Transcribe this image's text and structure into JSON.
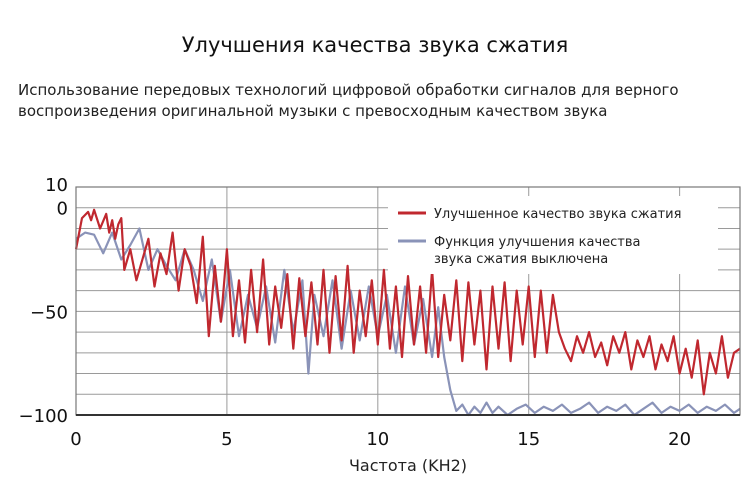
{
  "title": "Улучшения качества звука сжатия",
  "subtitle": "Использование передовых технологий цифровой обработки сигналов для верного воспроизведения оригинальной музыки с превосходным качеством звука",
  "chart_data": {
    "type": "line",
    "xlabel": "Частота (KH2)",
    "ylabel": "",
    "xlim": [
      0,
      22
    ],
    "ylim": [
      -100,
      10
    ],
    "xticks": [
      0,
      5,
      10,
      15,
      20
    ],
    "yticks": [
      10,
      0,
      -50,
      -100
    ],
    "grid": true,
    "legend_position": "top-right",
    "series": [
      {
        "name": "Улучшенное качество звука сжатия",
        "color": "#c0282f",
        "x": [
          0,
          0.2,
          0.4,
          0.5,
          0.6,
          0.8,
          1.0,
          1.1,
          1.2,
          1.3,
          1.4,
          1.5,
          1.6,
          1.8,
          2.0,
          2.2,
          2.4,
          2.6,
          2.8,
          3.0,
          3.2,
          3.4,
          3.6,
          3.8,
          4.0,
          4.2,
          4.4,
          4.6,
          4.8,
          5.0,
          5.2,
          5.4,
          5.6,
          5.8,
          6.0,
          6.2,
          6.4,
          6.6,
          6.8,
          7.0,
          7.2,
          7.4,
          7.6,
          7.8,
          8.0,
          8.2,
          8.4,
          8.6,
          8.8,
          9.0,
          9.2,
          9.4,
          9.6,
          9.8,
          10.0,
          10.2,
          10.4,
          10.6,
          10.8,
          11.0,
          11.2,
          11.4,
          11.6,
          11.8,
          12.0,
          12.2,
          12.4,
          12.6,
          12.8,
          13.0,
          13.2,
          13.4,
          13.6,
          13.8,
          14.0,
          14.2,
          14.4,
          14.6,
          14.8,
          15.0,
          15.2,
          15.4,
          15.6,
          15.8,
          16.0,
          16.2,
          16.4,
          16.6,
          16.8,
          17.0,
          17.2,
          17.4,
          17.6,
          17.8,
          18.0,
          18.2,
          18.4,
          18.6,
          18.8,
          19.0,
          19.2,
          19.4,
          19.6,
          19.8,
          20.0,
          20.2,
          20.4,
          20.6,
          20.8,
          21.0,
          21.2,
          21.4,
          21.6,
          21.8,
          22.0
        ],
        "values": [
          -20,
          -5,
          -2,
          -6,
          -1,
          -10,
          -3,
          -12,
          -6,
          -15,
          -8,
          -5,
          -30,
          -20,
          -35,
          -25,
          -15,
          -38,
          -22,
          -32,
          -12,
          -40,
          -20,
          -28,
          -46,
          -14,
          -62,
          -28,
          -55,
          -20,
          -62,
          -35,
          -65,
          -30,
          -60,
          -25,
          -66,
          -38,
          -58,
          -32,
          -68,
          -34,
          -62,
          -36,
          -66,
          -30,
          -70,
          -33,
          -64,
          -28,
          -70,
          -40,
          -62,
          -35,
          -66,
          -30,
          -68,
          -38,
          -72,
          -33,
          -66,
          -38,
          -70,
          -30,
          -72,
          -42,
          -64,
          -35,
          -74,
          -36,
          -66,
          -40,
          -78,
          -38,
          -68,
          -36,
          -74,
          -40,
          -66,
          -38,
          -72,
          -40,
          -70,
          -42,
          -60,
          -68,
          -74,
          -62,
          -70,
          -60,
          -72,
          -65,
          -76,
          -62,
          -70,
          -60,
          -78,
          -64,
          -72,
          -62,
          -78,
          -66,
          -74,
          -62,
          -80,
          -68,
          -82,
          -64,
          -90,
          -70,
          -80,
          -62,
          -82,
          -70,
          -68
        ]
      },
      {
        "name": "Функция улучшения качества звука сжатия выключена",
        "color": "#8a93b8",
        "x": [
          0,
          0.3,
          0.6,
          0.9,
          1.2,
          1.5,
          1.8,
          2.1,
          2.4,
          2.7,
          3.0,
          3.3,
          3.6,
          3.9,
          4.2,
          4.5,
          4.8,
          5.1,
          5.4,
          5.7,
          6.0,
          6.3,
          6.6,
          6.9,
          7.2,
          7.5,
          7.7,
          7.9,
          8.2,
          8.5,
          8.8,
          9.1,
          9.4,
          9.7,
          10.0,
          10.3,
          10.6,
          10.9,
          11.2,
          11.5,
          11.8,
          12.0,
          12.2,
          12.4,
          12.6,
          12.8,
          13.0,
          13.2,
          13.4,
          13.6,
          13.8,
          14.0,
          14.3,
          14.6,
          14.9,
          15.2,
          15.5,
          15.8,
          16.1,
          16.4,
          16.7,
          17.0,
          17.3,
          17.6,
          17.9,
          18.2,
          18.5,
          18.8,
          19.1,
          19.4,
          19.7,
          20.0,
          20.3,
          20.6,
          20.9,
          21.2,
          21.5,
          21.8,
          22.0
        ],
        "values": [
          -15,
          -12,
          -13,
          -22,
          -12,
          -25,
          -18,
          -10,
          -30,
          -20,
          -28,
          -35,
          -20,
          -30,
          -45,
          -25,
          -55,
          -30,
          -62,
          -42,
          -58,
          -38,
          -65,
          -30,
          -60,
          -35,
          -80,
          -42,
          -62,
          -35,
          -68,
          -40,
          -64,
          -38,
          -62,
          -42,
          -70,
          -38,
          -66,
          -44,
          -72,
          -48,
          -72,
          -88,
          -98,
          -95,
          -100,
          -96,
          -99,
          -94,
          -99,
          -96,
          -100,
          -97,
          -95,
          -99,
          -96,
          -98,
          -95,
          -99,
          -97,
          -94,
          -99,
          -96,
          -98,
          -95,
          -100,
          -97,
          -94,
          -99,
          -96,
          -98,
          -95,
          -99,
          -96,
          -98,
          -95,
          -99,
          -97
        ]
      }
    ]
  }
}
